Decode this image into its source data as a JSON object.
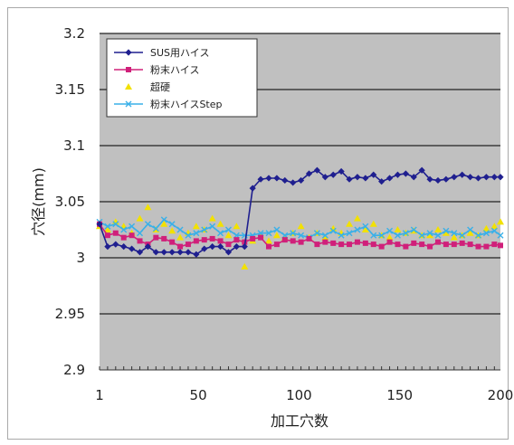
{
  "chart_data": {
    "type": "line",
    "xlabel": "加工穴数",
    "ylabel": "穴径(mm)",
    "xlim": [
      1,
      200
    ],
    "ylim": [
      2.9,
      3.2
    ],
    "xticks": [
      1,
      50,
      100,
      150,
      200
    ],
    "xtick_labels": [
      "1",
      "50",
      "100",
      "150",
      "200"
    ],
    "yticks": [
      2.9,
      2.95,
      3.0,
      3.05,
      3.1,
      3.15,
      3.2
    ],
    "ytick_labels": [
      "2.9",
      "2.95",
      "3",
      "3.05",
      "3.1",
      "3.15",
      "3.2"
    ],
    "grid": "horizontal",
    "plot_background": "#c0c0c0",
    "legend_position": "top-left",
    "series": [
      {
        "name": "SUS用ハイス",
        "color": "#1f1f8f",
        "marker": "diamond",
        "x": [
          1,
          5,
          9,
          13,
          17,
          21,
          25,
          29,
          33,
          37,
          41,
          45,
          49,
          53,
          57,
          61,
          65,
          69,
          73,
          77,
          81,
          85,
          89,
          93,
          97,
          101,
          105,
          109,
          113,
          117,
          121,
          125,
          129,
          133,
          137,
          141,
          145,
          149,
          153,
          157,
          161,
          165,
          169,
          173,
          177,
          181,
          185,
          189,
          193,
          197,
          200
        ],
        "y": [
          3.03,
          3.01,
          3.012,
          3.01,
          3.008,
          3.005,
          3.01,
          3.005,
          3.005,
          3.005,
          3.005,
          3.005,
          3.003,
          3.008,
          3.01,
          3.01,
          3.005,
          3.01,
          3.01,
          3.062,
          3.07,
          3.071,
          3.071,
          3.069,
          3.067,
          3.069,
          3.075,
          3.078,
          3.072,
          3.074,
          3.077,
          3.07,
          3.072,
          3.071,
          3.074,
          3.068,
          3.071,
          3.074,
          3.075,
          3.072,
          3.078,
          3.07,
          3.069,
          3.07,
          3.072,
          3.074,
          3.072,
          3.071,
          3.072,
          3.072,
          3.072
        ]
      },
      {
        "name": "粉末ハイス",
        "color": "#d0207a",
        "marker": "square",
        "x": [
          1,
          5,
          9,
          13,
          17,
          21,
          25,
          29,
          33,
          37,
          41,
          45,
          49,
          53,
          57,
          61,
          65,
          69,
          73,
          77,
          81,
          85,
          89,
          93,
          97,
          101,
          105,
          109,
          113,
          117,
          121,
          125,
          129,
          133,
          137,
          141,
          145,
          149,
          153,
          157,
          161,
          165,
          169,
          173,
          177,
          181,
          185,
          189,
          193,
          197,
          200
        ],
        "y": [
          3.03,
          3.02,
          3.022,
          3.018,
          3.02,
          3.015,
          3.012,
          3.018,
          3.017,
          3.014,
          3.01,
          3.012,
          3.015,
          3.016,
          3.017,
          3.015,
          3.012,
          3.016,
          3.014,
          3.017,
          3.018,
          3.01,
          3.012,
          3.016,
          3.015,
          3.014,
          3.017,
          3.012,
          3.014,
          3.013,
          3.012,
          3.012,
          3.014,
          3.013,
          3.012,
          3.01,
          3.014,
          3.012,
          3.01,
          3.013,
          3.012,
          3.01,
          3.014,
          3.012,
          3.012,
          3.013,
          3.012,
          3.01,
          3.01,
          3.012,
          3.011
        ]
      },
      {
        "name": "超硬",
        "color": "#f2e100",
        "marker": "triangle",
        "x": [
          1,
          5,
          9,
          13,
          17,
          21,
          25,
          29,
          33,
          37,
          41,
          45,
          49,
          53,
          57,
          61,
          65,
          69,
          73,
          77,
          81,
          85,
          89,
          93,
          97,
          101,
          105,
          109,
          113,
          117,
          121,
          125,
          129,
          133,
          137,
          141,
          145,
          149,
          153,
          157,
          161,
          165,
          169,
          173,
          177,
          181,
          185,
          189,
          193,
          197,
          200
        ],
        "y": [
          3.028,
          3.025,
          3.032,
          3.028,
          3.022,
          3.035,
          3.045,
          3.025,
          3.03,
          3.024,
          3.018,
          3.022,
          3.028,
          3.025,
          3.035,
          3.03,
          3.02,
          3.028,
          2.992,
          3.015,
          3.02,
          3.015,
          3.02,
          3.018,
          3.022,
          3.028,
          3.018,
          3.022,
          3.018,
          3.026,
          3.022,
          3.03,
          3.035,
          3.025,
          3.03,
          3.02,
          3.018,
          3.025,
          3.022,
          3.024,
          3.02,
          3.02,
          3.025,
          3.022,
          3.018,
          3.02,
          3.022,
          3.02,
          3.026,
          3.028,
          3.032
        ]
      },
      {
        "name": "粉末ハイスStep",
        "color": "#3ab0e8",
        "marker": "cross",
        "x": [
          1,
          5,
          9,
          13,
          17,
          21,
          25,
          29,
          33,
          37,
          41,
          45,
          49,
          53,
          57,
          61,
          65,
          69,
          73,
          77,
          81,
          85,
          89,
          93,
          97,
          101,
          105,
          109,
          113,
          117,
          121,
          125,
          129,
          133,
          137,
          141,
          145,
          149,
          153,
          157,
          161,
          165,
          169,
          173,
          177,
          181,
          185,
          189,
          193,
          197,
          200
        ],
        "y": [
          3.032,
          3.028,
          3.03,
          3.025,
          3.028,
          3.022,
          3.03,
          3.026,
          3.034,
          3.03,
          3.025,
          3.02,
          3.022,
          3.025,
          3.028,
          3.022,
          3.025,
          3.02,
          3.02,
          3.02,
          3.022,
          3.022,
          3.025,
          3.02,
          3.022,
          3.02,
          3.018,
          3.022,
          3.02,
          3.024,
          3.02,
          3.022,
          3.025,
          3.028,
          3.02,
          3.02,
          3.024,
          3.02,
          3.022,
          3.025,
          3.02,
          3.022,
          3.02,
          3.024,
          3.022,
          3.02,
          3.025,
          3.02,
          3.022,
          3.024,
          3.02
        ]
      }
    ]
  }
}
